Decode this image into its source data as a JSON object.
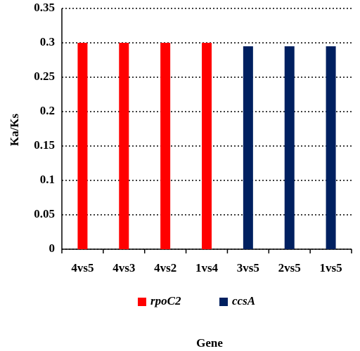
{
  "chart_data": {
    "type": "bar",
    "categories": [
      "4vs5",
      "4vs3",
      "4vs2",
      "1vs4",
      "3vs5",
      "2vs5",
      "1vs5"
    ],
    "series": [
      {
        "name": "rpoC2",
        "color": "#ff0000",
        "values": [
          0.3,
          0.3,
          0.3,
          0.3,
          null,
          null,
          null
        ]
      },
      {
        "name": "ccsA",
        "color": "#002060",
        "values": [
          null,
          null,
          null,
          null,
          0.295,
          0.295,
          0.295
        ]
      }
    ],
    "ylabel": "Ka/Ks",
    "xlabel": "Gene",
    "ylim": [
      0,
      0.35
    ],
    "yticks": [
      0,
      0.05,
      0.1,
      0.15,
      0.2,
      0.25,
      0.3,
      0.35
    ],
    "grid": true,
    "legend": "bottom"
  }
}
